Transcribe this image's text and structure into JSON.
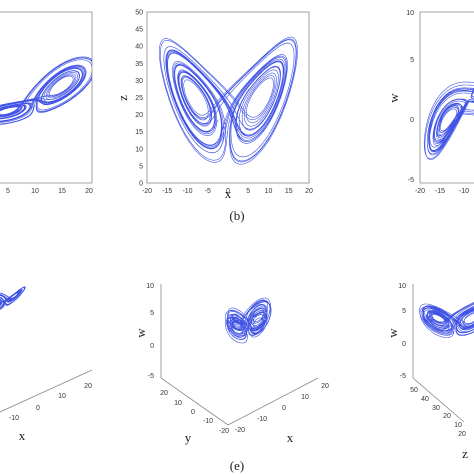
{
  "colors": {
    "trajectory": "#1f35e0",
    "axis": "#888888",
    "text": "#222222"
  },
  "captions": {
    "top": "(b)",
    "bottom": "(e)"
  },
  "chart_data": [
    {
      "id": "top-left",
      "type": "line",
      "projection": "2d-partial",
      "xlabel": "",
      "ylabel": "",
      "xticks": [
        "5",
        "10",
        "15",
        "20"
      ],
      "yticks": [],
      "series": [
        {
          "values_description_free": true
        }
      ]
    },
    {
      "id": "top-middle",
      "type": "line",
      "projection": "2d",
      "xlabel": "x",
      "ylabel": "z",
      "xlim": [
        -20,
        20
      ],
      "ylim": [
        0,
        50
      ],
      "xticks": [
        "-20",
        "-15",
        "-10",
        "-5",
        "0",
        "5",
        "10",
        "15",
        "20"
      ],
      "yticks": [
        "0",
        "5",
        "10",
        "15",
        "20",
        "25",
        "30",
        "35",
        "40",
        "45",
        "50"
      ],
      "grid": false
    },
    {
      "id": "top-right",
      "type": "line",
      "projection": "2d",
      "xlabel": "",
      "ylabel": "w",
      "xticks": [
        "-20",
        "-15",
        "-10"
      ],
      "yticks": [
        "10",
        "5",
        "0",
        "-5"
      ],
      "grid": false
    },
    {
      "id": "bottom-left",
      "type": "line",
      "projection": "3d",
      "xlabel": "x",
      "ylabel": "",
      "xticks": [
        "-10",
        "0",
        "10",
        "20"
      ]
    },
    {
      "id": "bottom-middle",
      "type": "line",
      "projection": "3d",
      "xlabel": "x",
      "ylabel": "y",
      "zlabel": "w",
      "zticks": [
        "10",
        "5",
        "0",
        "-5"
      ],
      "xticks": [
        "-20",
        "-10",
        "0",
        "10",
        "20"
      ],
      "yticks": [
        "20",
        "10",
        "0",
        "-10",
        "-20"
      ]
    },
    {
      "id": "bottom-right",
      "type": "line",
      "projection": "3d",
      "xlabel": "z",
      "ylabel": "",
      "zlabel": "w",
      "zticks": [
        "10",
        "5",
        "0",
        "-5"
      ],
      "yticks": [
        "50",
        "40",
        "30",
        "20",
        "10"
      ],
      "xticks": [
        "20"
      ]
    }
  ]
}
